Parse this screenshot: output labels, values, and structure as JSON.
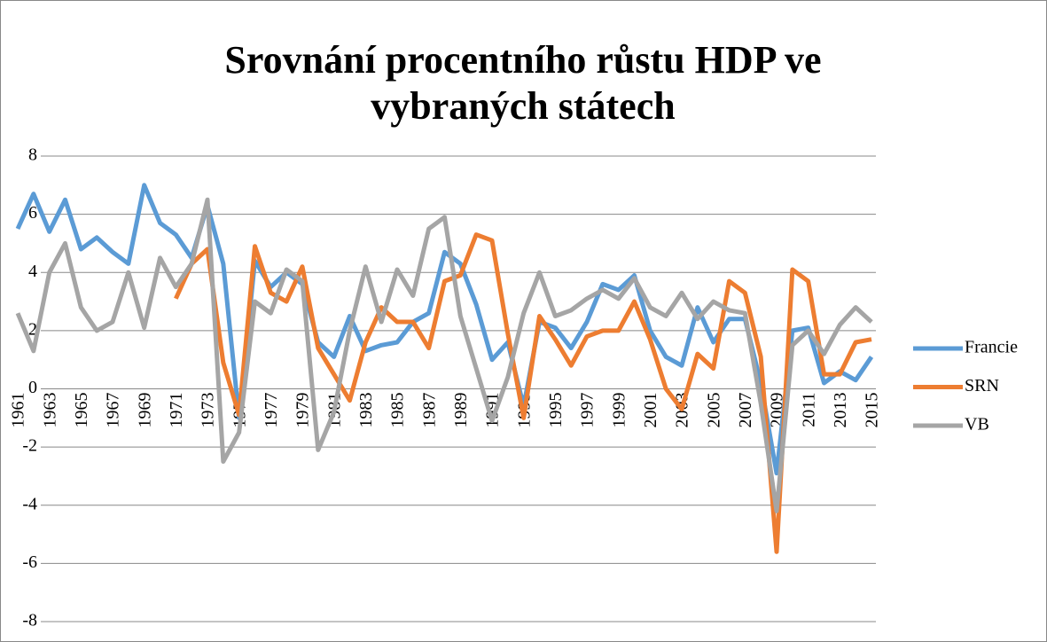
{
  "chart_data": {
    "type": "line",
    "title": [
      "Srovnání procentního růstu HDP ve",
      "vybraných státech"
    ],
    "categories": [
      "1961",
      null,
      "1963",
      null,
      "1965",
      null,
      "1967",
      null,
      "1969",
      null,
      "1971",
      null,
      "1973",
      null,
      "1975",
      null,
      "1977",
      null,
      "1979",
      null,
      "1981",
      null,
      "1983",
      null,
      "1985",
      null,
      "1987",
      null,
      "1989",
      null,
      "1991",
      null,
      "1993",
      null,
      "1995",
      null,
      "1997",
      null,
      "1999",
      null,
      "2001",
      null,
      "2003",
      null,
      "2005",
      null,
      "2007",
      null,
      "2009",
      null,
      "2011",
      null,
      "2013",
      null,
      "2015"
    ],
    "series": [
      {
        "name": "Francie",
        "color": "#5b9bd5",
        "values": [
          5.5,
          6.7,
          5.4,
          6.5,
          4.8,
          5.2,
          4.7,
          4.3,
          7.0,
          5.7,
          5.3,
          4.5,
          6.3,
          4.3,
          -1.0,
          4.4,
          3.5,
          4.0,
          3.6,
          1.6,
          1.1,
          2.5,
          1.3,
          1.5,
          1.6,
          2.3,
          2.6,
          4.7,
          4.3,
          2.9,
          1.0,
          1.6,
          -0.6,
          2.3,
          2.1,
          1.4,
          2.3,
          3.6,
          3.4,
          3.9,
          2.0,
          1.1,
          0.8,
          2.8,
          1.6,
          2.4,
          2.4,
          0.2,
          -2.9,
          2.0,
          2.1,
          0.2,
          0.6,
          0.3,
          1.1
        ]
      },
      {
        "name": "SRN",
        "color": "#ed7d31",
        "values": [
          null,
          null,
          null,
          null,
          null,
          null,
          null,
          null,
          null,
          null,
          3.1,
          4.3,
          4.8,
          0.9,
          -0.9,
          4.9,
          3.3,
          3.0,
          4.2,
          1.4,
          0.5,
          -0.4,
          1.6,
          2.8,
          2.3,
          2.3,
          1.4,
          3.7,
          3.9,
          5.3,
          5.1,
          1.9,
          -1.0,
          2.5,
          1.7,
          0.8,
          1.8,
          2.0,
          2.0,
          3.0,
          1.7,
          0.0,
          -0.7,
          1.2,
          0.7,
          3.7,
          3.3,
          1.1,
          -5.6,
          4.1,
          3.7,
          0.5,
          0.5,
          1.6,
          1.7
        ]
      },
      {
        "name": "VB",
        "color": "#a5a5a5",
        "values": [
          2.6,
          1.3,
          4.0,
          5.0,
          2.8,
          2.0,
          2.3,
          4.0,
          2.1,
          4.5,
          3.5,
          4.3,
          6.5,
          -2.5,
          -1.5,
          3.0,
          2.6,
          4.1,
          3.7,
          -2.1,
          -0.8,
          2.0,
          4.2,
          2.3,
          4.1,
          3.2,
          5.5,
          5.9,
          2.5,
          0.7,
          -1.1,
          0.4,
          2.6,
          4.0,
          2.5,
          2.7,
          3.1,
          3.4,
          3.1,
          3.8,
          2.8,
          2.5,
          3.3,
          2.4,
          3.0,
          2.7,
          2.6,
          -0.5,
          -4.2,
          1.5,
          2.0,
          1.2,
          2.2,
          2.8,
          2.3
        ]
      }
    ],
    "ylim": [
      -8,
      8
    ],
    "yticks": [
      -8,
      -6,
      -4,
      -2,
      0,
      2,
      4,
      6,
      8
    ],
    "grid": true,
    "legend": "right"
  }
}
